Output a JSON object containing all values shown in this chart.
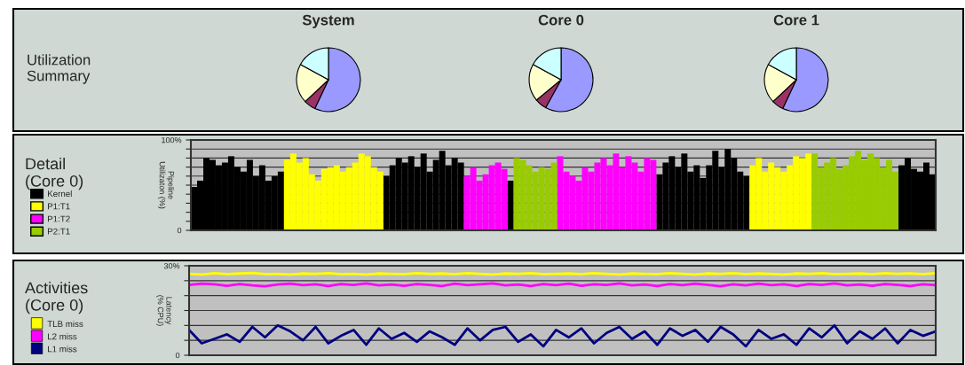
{
  "chart_data": [
    {
      "type": "pie",
      "title": "System",
      "annotations": [
        "Utilization\nSummary"
      ],
      "categories": [
        null,
        null,
        null,
        null
      ],
      "values": [
        57,
        6,
        20,
        17
      ],
      "colors": [
        "#9999ff",
        "#993366",
        "#ffffcc",
        "#ccffff"
      ]
    },
    {
      "type": "pie",
      "title": "Core 0",
      "categories": [
        null,
        null,
        null,
        null
      ],
      "values": [
        58,
        6,
        19,
        17
      ],
      "colors": [
        "#9999ff",
        "#993366",
        "#ffffcc",
        "#ccffff"
      ]
    },
    {
      "type": "pie",
      "title": "Core 1",
      "categories": [
        null,
        null,
        null,
        null
      ],
      "values": [
        57,
        6,
        20,
        17
      ],
      "colors": [
        "#9999ff",
        "#993366",
        "#ffffcc",
        "#ccffff"
      ]
    },
    {
      "type": "bar",
      "title": "Detail\n(Core 0)",
      "ylabel": "Pipeline\nUtilizaton (%)",
      "legend": "left",
      "grid": "y",
      "tick_labels": "y",
      "ylim": [
        0,
        100
      ],
      "categories": [
        null,
        null,
        null,
        null,
        null,
        null,
        null,
        null,
        null,
        null,
        null,
        null,
        null,
        null,
        null,
        null,
        null,
        null,
        null,
        null,
        null,
        null,
        null,
        null,
        null,
        null,
        null,
        null,
        null,
        null,
        null,
        null,
        null,
        null,
        null,
        null,
        null,
        null,
        null,
        null,
        null,
        null,
        null,
        null,
        null,
        null,
        null,
        null,
        null,
        null,
        null,
        null,
        null,
        null,
        null,
        null,
        null,
        null,
        null,
        null,
        null,
        null,
        null,
        null,
        null,
        null,
        null,
        null,
        null,
        null,
        null,
        null,
        null,
        null,
        null,
        null,
        null,
        null,
        null,
        null,
        null,
        null,
        null,
        null,
        null,
        null,
        null,
        null,
        null,
        null,
        null,
        null,
        null,
        null,
        null,
        null,
        null,
        null,
        null,
        null,
        null,
        null,
        null,
        null,
        null,
        null,
        null,
        null,
        null,
        null,
        null,
        null,
        null,
        null,
        null,
        null,
        null,
        null,
        null,
        null
      ],
      "yticks": [
        {
          "value": 0,
          "label": "0"
        },
        {
          "value": 10,
          "label": null
        },
        {
          "value": 20,
          "label": null
        },
        {
          "value": 30,
          "label": null
        },
        {
          "value": 40,
          "label": null
        },
        {
          "value": 50,
          "label": null
        },
        {
          "value": 60,
          "label": null
        },
        {
          "value": 70,
          "label": null
        },
        {
          "value": 80,
          "label": null
        },
        {
          "value": 90,
          "label": null
        },
        {
          "value": 100,
          "label": "100%"
        }
      ],
      "series": [
        {
          "name": "Kernel",
          "color": "#000000",
          "values": [
            48,
            55,
            80,
            78,
            72,
            75,
            82,
            70,
            65,
            78,
            60,
            72,
            55,
            60,
            65,
            null,
            null,
            null,
            null,
            null,
            null,
            null,
            null,
            null,
            null,
            null,
            null,
            null,
            null,
            null,
            null,
            60,
            72,
            80,
            75,
            82,
            70,
            85,
            65,
            78,
            88,
            72,
            80,
            75,
            null,
            null,
            null,
            null,
            null,
            null,
            null,
            55,
            null,
            null,
            null,
            null,
            null,
            null,
            null,
            null,
            null,
            null,
            null,
            null,
            null,
            null,
            null,
            null,
            null,
            null,
            null,
            null,
            null,
            null,
            null,
            62,
            75,
            82,
            70,
            85,
            65,
            72,
            58,
            72,
            88,
            70,
            90,
            80,
            65,
            60,
            null,
            null,
            null,
            null,
            null,
            null,
            null,
            null,
            null,
            null,
            null,
            null,
            null,
            null,
            null,
            null,
            null,
            null,
            null,
            null,
            null,
            null,
            null,
            null,
            72,
            80,
            68,
            65,
            75,
            62
          ]
        },
        {
          "name": "P1:T1",
          "color": "#ffff00",
          "values": [
            null,
            null,
            null,
            null,
            null,
            null,
            null,
            null,
            null,
            null,
            null,
            null,
            null,
            null,
            null,
            78,
            85,
            75,
            80,
            62,
            55,
            68,
            70,
            72,
            65,
            70,
            75,
            85,
            82,
            70,
            65,
            null,
            null,
            null,
            null,
            null,
            null,
            null,
            null,
            null,
            null,
            null,
            null,
            null,
            null,
            null,
            null,
            null,
            null,
            null,
            null,
            null,
            null,
            null,
            null,
            null,
            null,
            null,
            null,
            null,
            null,
            null,
            null,
            null,
            null,
            null,
            null,
            null,
            null,
            null,
            null,
            null,
            null,
            null,
            null,
            null,
            null,
            null,
            null,
            null,
            null,
            null,
            null,
            null,
            null,
            null,
            null,
            null,
            null,
            null,
            72,
            80,
            65,
            75,
            70,
            65,
            72,
            82,
            80,
            85,
            null,
            null,
            null,
            null,
            null,
            null,
            null,
            null,
            null,
            null,
            null,
            null,
            null,
            null,
            null,
            null,
            null,
            null,
            null,
            null
          ]
        },
        {
          "name": "P1:T2",
          "color": "#ff00ff",
          "values": [
            null,
            null,
            null,
            null,
            null,
            null,
            null,
            null,
            null,
            null,
            null,
            null,
            null,
            null,
            null,
            null,
            null,
            null,
            null,
            null,
            null,
            null,
            null,
            null,
            null,
            null,
            null,
            null,
            null,
            null,
            null,
            null,
            null,
            null,
            null,
            null,
            null,
            null,
            null,
            null,
            null,
            null,
            null,
            null,
            60,
            70,
            55,
            62,
            72,
            75,
            68,
            null,
            null,
            null,
            null,
            null,
            null,
            null,
            null,
            82,
            65,
            60,
            55,
            70,
            65,
            75,
            80,
            72,
            85,
            70,
            82,
            75,
            65,
            80,
            78,
            null,
            null,
            null,
            null,
            null,
            null,
            null,
            null,
            null,
            null,
            null,
            null,
            null,
            null,
            null,
            null,
            null,
            null,
            null,
            null,
            null,
            null,
            null,
            null,
            null,
            null,
            null,
            null,
            null,
            null,
            null,
            null,
            null,
            null,
            null,
            null,
            null,
            null,
            null,
            null,
            null,
            null,
            null,
            null,
            null
          ]
        },
        {
          "name": "P2:T1",
          "color": "#99cc00",
          "values": [
            null,
            null,
            null,
            null,
            null,
            null,
            null,
            null,
            null,
            null,
            null,
            null,
            null,
            null,
            null,
            null,
            null,
            null,
            null,
            null,
            null,
            null,
            null,
            null,
            null,
            null,
            null,
            null,
            null,
            null,
            null,
            null,
            null,
            null,
            null,
            null,
            null,
            null,
            null,
            null,
            null,
            null,
            null,
            null,
            null,
            null,
            null,
            null,
            null,
            null,
            null,
            null,
            80,
            78,
            72,
            65,
            70,
            68,
            75,
            null,
            null,
            null,
            null,
            null,
            null,
            null,
            null,
            null,
            null,
            null,
            null,
            null,
            null,
            null,
            null,
            null,
            null,
            null,
            null,
            null,
            null,
            null,
            null,
            null,
            null,
            null,
            null,
            null,
            null,
            null,
            null,
            null,
            null,
            null,
            null,
            null,
            null,
            null,
            null,
            null,
            85,
            70,
            75,
            80,
            68,
            72,
            82,
            88,
            78,
            85,
            80,
            70,
            78,
            65,
            null,
            null,
            null,
            null,
            null,
            null
          ]
        }
      ]
    },
    {
      "type": "line",
      "title": "Activities\n(Core 0)",
      "ylabel": "Latency\n(% CPU)",
      "legend": "left",
      "grid": "y",
      "tick_labels": "y",
      "ylim": [
        0,
        30
      ],
      "categories": [
        null,
        null,
        null,
        null,
        null,
        null,
        null,
        null,
        null,
        null,
        null,
        null,
        null,
        null,
        null,
        null,
        null,
        null,
        null,
        null,
        null,
        null,
        null,
        null,
        null,
        null,
        null,
        null,
        null,
        null,
        null,
        null,
        null,
        null,
        null,
        null,
        null,
        null,
        null,
        null,
        null,
        null,
        null,
        null,
        null,
        null,
        null,
        null,
        null,
        null,
        null,
        null,
        null,
        null,
        null,
        null,
        null,
        null,
        null,
        null
      ],
      "yticks": [
        {
          "value": 0,
          "label": "0"
        },
        {
          "value": 5,
          "label": null
        },
        {
          "value": 10,
          "label": null
        },
        {
          "value": 15,
          "label": null
        },
        {
          "value": 20,
          "label": null
        },
        {
          "value": 25,
          "label": null
        },
        {
          "value": 30,
          "label": "30%"
        }
      ],
      "series": [
        {
          "name": "TLB miss",
          "color": "#ffff00",
          "values": [
            27.3,
            27.1,
            27.5,
            27.2,
            27.4,
            27.6,
            27.2,
            27.3,
            27.1,
            27.4,
            27.3,
            27.5,
            27.2,
            27.3,
            27.1,
            27.4,
            27.3,
            27.2,
            27.5,
            27.3,
            27.4,
            27.2,
            27.5,
            27.3,
            27.1,
            27.4,
            27.3,
            27.5,
            27.2,
            27.3,
            27.4,
            27.2,
            27.5,
            27.3,
            27.1,
            27.4,
            27.3,
            27.2,
            27.5,
            27.3,
            27.1,
            27.4,
            27.3,
            27.5,
            27.2,
            27.4,
            27.3,
            27.1,
            27.4,
            27.3,
            27.5,
            27.2,
            27.3,
            27.4,
            27.2,
            27.5,
            27.3,
            27.4,
            27.2,
            27.5
          ]
        },
        {
          "name": "L2 miss",
          "color": "#ff00ff",
          "values": [
            23.6,
            24.0,
            23.8,
            23.3,
            23.9,
            23.4,
            23.1,
            23.7,
            24.0,
            23.5,
            23.8,
            23.2,
            23.9,
            23.6,
            24.1,
            23.4,
            23.7,
            23.3,
            23.9,
            23.6,
            23.2,
            24.0,
            23.5,
            23.8,
            24.1,
            23.4,
            23.7,
            23.2,
            23.9,
            23.5,
            24.0,
            23.3,
            23.8,
            23.6,
            24.1,
            23.4,
            23.7,
            23.2,
            23.9,
            23.5,
            24.0,
            23.6,
            23.1,
            23.8,
            23.4,
            24.0,
            23.5,
            23.8,
            23.2,
            23.9,
            23.6,
            24.1,
            23.4,
            23.7,
            23.3,
            23.9,
            23.6,
            23.2,
            23.8,
            23.5
          ]
        },
        {
          "name": "L1 miss",
          "color": "#000080",
          "values": [
            8.5,
            4.0,
            5.5,
            7.0,
            4.5,
            9.5,
            6.0,
            10.0,
            8.0,
            5.0,
            9.5,
            4.0,
            6.5,
            8.5,
            3.5,
            9.0,
            5.5,
            7.5,
            4.5,
            8.0,
            6.0,
            3.5,
            9.0,
            5.0,
            8.5,
            9.5,
            4.5,
            7.0,
            3.0,
            8.5,
            6.0,
            9.0,
            4.0,
            7.5,
            9.5,
            5.5,
            8.0,
            3.5,
            9.0,
            6.5,
            8.5,
            4.5,
            9.5,
            7.0,
            3.0,
            8.5,
            5.5,
            7.0,
            3.5,
            9.0,
            6.0,
            10.0,
            4.0,
            8.0,
            5.5,
            9.0,
            4.0,
            8.5,
            6.5,
            8.0
          ]
        }
      ]
    }
  ]
}
